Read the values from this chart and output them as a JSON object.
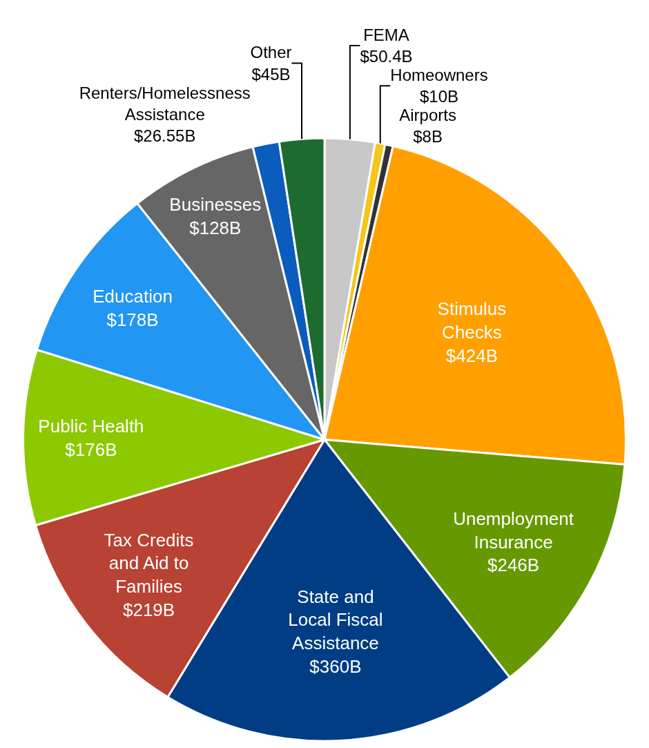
{
  "chart_data": {
    "type": "pie",
    "categories": [
      "FEMA",
      "Homeowners",
      "Airports",
      "Stimulus Checks",
      "Unemployment Insurance",
      "State and Local Fiscal Assistance",
      "Tax Credits and Aid to Families",
      "Public Health",
      "Education",
      "Businesses",
      "Renters/Homelessness Assistance",
      "Other"
    ],
    "values": [
      50.4,
      10,
      8,
      424,
      246,
      360,
      219,
      176,
      178,
      128,
      26.55,
      45
    ],
    "value_labels": [
      "$50.4B",
      "$10B",
      "$8B",
      "$424B",
      "$246B",
      "$360B",
      "$219B",
      "$176B",
      "$178B",
      "$128B",
      "$26.55B",
      "$45B"
    ],
    "colors": [
      "#c8c8c8",
      "#f5c518",
      "#333333",
      "#ffa000",
      "#669900",
      "#003d85",
      "#b84233",
      "#8dc900",
      "#2196f3",
      "#666666",
      "#0a5cbf",
      "#1e6b30"
    ],
    "legend": false
  }
}
